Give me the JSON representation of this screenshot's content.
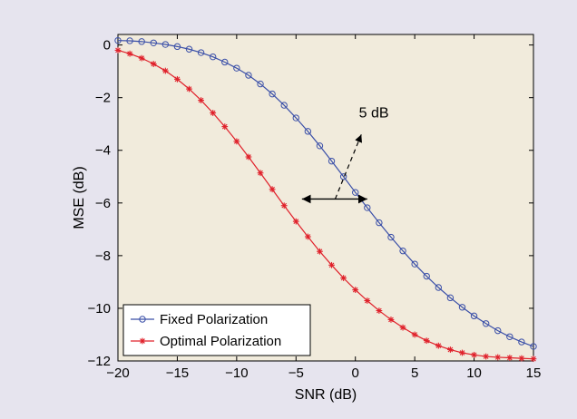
{
  "chart_data": {
    "type": "line",
    "title": "",
    "xlabel": "SNR (dB)",
    "ylabel": "MSE (dB)",
    "xlim": [
      -20,
      15
    ],
    "ylim": [
      -12,
      0.4
    ],
    "xticks": [
      -20,
      -15,
      -10,
      -5,
      0,
      5,
      10,
      15
    ],
    "yticks": [
      0,
      -2,
      -4,
      -6,
      -8,
      -10,
      -12
    ],
    "xtick_labels": [
      "−20",
      "−15",
      "−10",
      "−5",
      "0",
      "5",
      "10",
      "15"
    ],
    "ytick_labels": [
      "0",
      "−2",
      "−4",
      "−6",
      "−8",
      "−10",
      "−12"
    ],
    "grid": false,
    "legend_position": "bottom-left",
    "background": "#f1ebdc",
    "x": [
      -20,
      -19,
      -18,
      -17,
      -16,
      -15,
      -14,
      -13,
      -12,
      -11,
      -10,
      -9,
      -8,
      -7,
      -6,
      -5,
      -4,
      -3,
      -2,
      -1,
      0,
      1,
      2,
      3,
      4,
      5,
      6,
      7,
      8,
      9,
      10,
      11,
      12,
      13,
      14,
      15
    ],
    "series": [
      {
        "name": "Fixed Polarization",
        "color": "#3a4fa8",
        "marker": "circle",
        "values": [
          0.17,
          0.16,
          0.13,
          0.08,
          0.02,
          -0.06,
          -0.16,
          -0.29,
          -0.45,
          -0.65,
          -0.88,
          -1.15,
          -1.48,
          -1.86,
          -2.29,
          -2.77,
          -3.28,
          -3.83,
          -4.41,
          -5.0,
          -5.6,
          -6.18,
          -6.75,
          -7.3,
          -7.82,
          -8.32,
          -8.78,
          -9.21,
          -9.6,
          -9.96,
          -10.29,
          -10.58,
          -10.85,
          -11.08,
          -11.28,
          -11.45
        ]
      },
      {
        "name": "Optimal Polarization",
        "color": "#e0202a",
        "marker": "star",
        "values": [
          -0.2,
          -0.33,
          -0.5,
          -0.72,
          -0.98,
          -1.3,
          -1.67,
          -2.1,
          -2.58,
          -3.1,
          -3.66,
          -4.25,
          -4.86,
          -5.48,
          -6.1,
          -6.7,
          -7.28,
          -7.84,
          -8.36,
          -8.85,
          -9.3,
          -9.71,
          -10.09,
          -10.43,
          -10.73,
          -11.0,
          -11.23,
          -11.42,
          -11.57,
          -11.69,
          -11.77,
          -11.83,
          -11.86,
          -11.88,
          -11.9,
          -11.92
        ]
      }
    ],
    "annotations": [
      {
        "text": "5 dB",
        "type": "double-arrow",
        "from": [
          -4.5,
          -5.85
        ],
        "to": [
          1.0,
          -5.85
        ]
      },
      {
        "text": "",
        "type": "dashed-arrow",
        "from": [
          -1.7,
          -5.85
        ],
        "to": [
          0.5,
          -3.4
        ]
      }
    ],
    "annotation_text_position": [
      0.3,
      -2.75
    ]
  }
}
